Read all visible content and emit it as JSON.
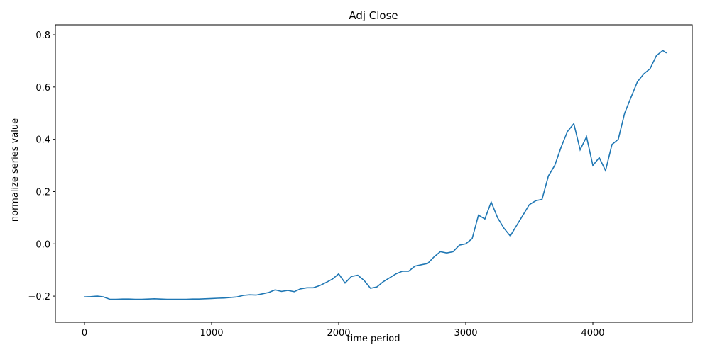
{
  "chart_data": {
    "type": "line",
    "title": "Adj Close",
    "x_label": "time period",
    "y_label": "normalize series value",
    "x": [
      0,
      50,
      100,
      150,
      200,
      250,
      300,
      350,
      400,
      450,
      500,
      550,
      600,
      650,
      700,
      750,
      800,
      850,
      900,
      950,
      1000,
      1050,
      1100,
      1150,
      1200,
      1250,
      1300,
      1350,
      1400,
      1450,
      1500,
      1550,
      1600,
      1650,
      1700,
      1750,
      1800,
      1850,
      1900,
      1950,
      2000,
      2050,
      2100,
      2150,
      2200,
      2250,
      2300,
      2350,
      2400,
      2450,
      2500,
      2550,
      2600,
      2650,
      2700,
      2750,
      2800,
      2850,
      2900,
      2950,
      3000,
      3050,
      3100,
      3150,
      3200,
      3250,
      3300,
      3350,
      3400,
      3450,
      3500,
      3550,
      3600,
      3650,
      3700,
      3750,
      3800,
      3850,
      3900,
      3950,
      4000,
      4050,
      4100,
      4150,
      4200,
      4250,
      4300,
      4350,
      4400,
      4450,
      4500,
      4550,
      4580
    ],
    "series": [
      {
        "color": "#1f77b4",
        "values": [
          -0.203,
          -0.202,
          -0.2,
          -0.203,
          -0.212,
          -0.212,
          -0.211,
          -0.211,
          -0.212,
          -0.212,
          -0.211,
          -0.21,
          -0.211,
          -0.212,
          -0.212,
          -0.212,
          -0.212,
          -0.211,
          -0.211,
          -0.21,
          -0.209,
          -0.208,
          -0.207,
          -0.205,
          -0.203,
          -0.197,
          -0.195,
          -0.196,
          -0.191,
          -0.186,
          -0.176,
          -0.182,
          -0.178,
          -0.183,
          -0.172,
          -0.168,
          -0.168,
          -0.16,
          -0.148,
          -0.135,
          -0.115,
          -0.15,
          -0.125,
          -0.12,
          -0.14,
          -0.17,
          -0.165,
          -0.145,
          -0.13,
          -0.115,
          -0.105,
          -0.105,
          -0.085,
          -0.08,
          -0.075,
          -0.05,
          -0.03,
          -0.035,
          -0.03,
          -0.005,
          0.0,
          0.02,
          0.11,
          0.095,
          0.16,
          0.1,
          0.06,
          0.03,
          0.07,
          0.11,
          0.15,
          0.165,
          0.17,
          0.26,
          0.3,
          0.37,
          0.43,
          0.46,
          0.36,
          0.41,
          0.3,
          0.33,
          0.28,
          0.38,
          0.4,
          0.5,
          0.56,
          0.62,
          0.65,
          0.67,
          0.72,
          0.74,
          0.73
        ]
      }
    ],
    "xlim": [
      -229,
      4782
    ],
    "ylim": [
      -0.3,
      0.838
    ],
    "xticks": [
      0,
      1000,
      2000,
      3000,
      4000
    ],
    "yticks": [
      {
        "value": -0.2,
        "label": "−0.2"
      },
      {
        "value": 0,
        "label": "0.0"
      },
      0.2,
      0.4,
      0.6,
      0.8
    ]
  }
}
